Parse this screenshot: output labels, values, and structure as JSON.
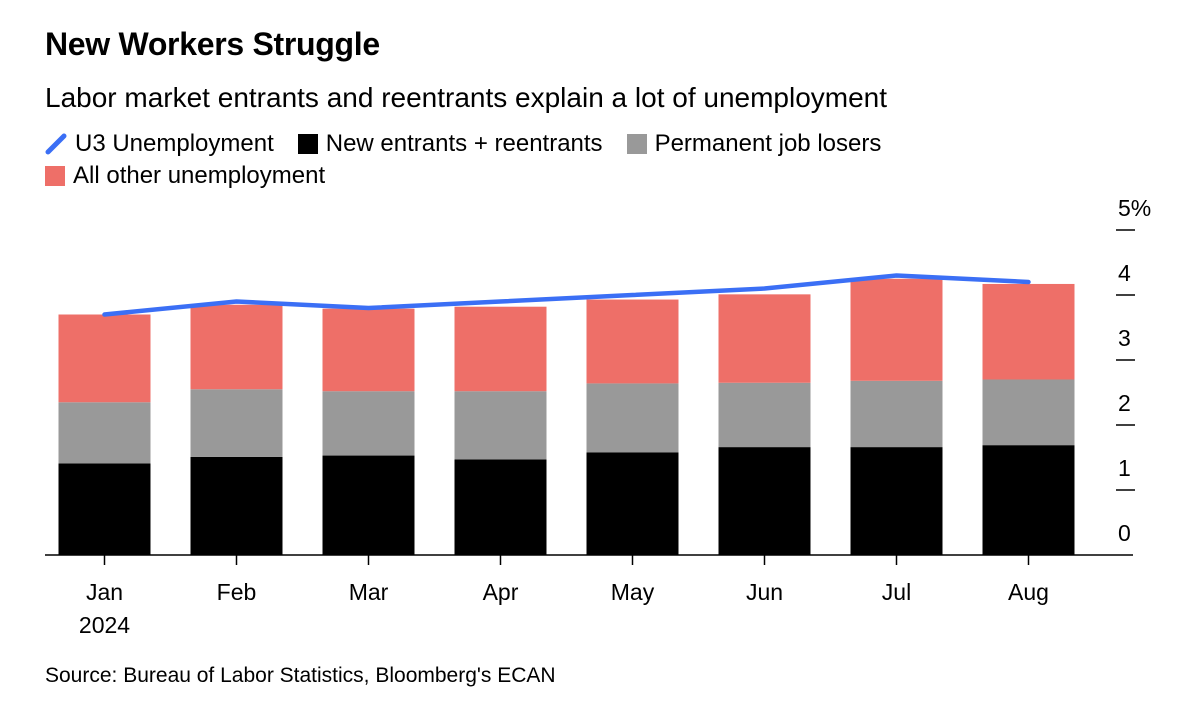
{
  "title": "New Workers Struggle",
  "subtitle": "Labor market entrants and reentrants explain a lot of unemployment",
  "legend": {
    "line": "U3 Unemployment",
    "entrants": "New entrants + reentrants",
    "losers": "Permanent job losers",
    "other": "All other unemployment"
  },
  "source": "Source: Bureau of Labor Statistics, Bloomberg's ECAN",
  "colors": {
    "line": "#3b6ff5",
    "entrants": "#000000",
    "losers": "#999999",
    "other": "#ee6f68"
  },
  "chart_data": {
    "type": "bar",
    "stacked": true,
    "categories": [
      "Jan",
      "Feb",
      "Mar",
      "Apr",
      "May",
      "Jun",
      "Jul",
      "Aug"
    ],
    "category_sublabels": [
      "2024",
      "",
      "",
      "",
      "",
      "",
      "",
      ""
    ],
    "series": [
      {
        "name": "New entrants + reentrants",
        "values": [
          1.41,
          1.51,
          1.53,
          1.47,
          1.58,
          1.66,
          1.66,
          1.69
        ]
      },
      {
        "name": "Permanent job losers",
        "values": [
          0.94,
          1.04,
          0.99,
          1.05,
          1.06,
          0.99,
          1.02,
          1.01
        ]
      },
      {
        "name": "All other unemployment",
        "values": [
          1.35,
          1.3,
          1.27,
          1.3,
          1.29,
          1.36,
          1.57,
          1.47
        ]
      }
    ],
    "line": {
      "name": "U3 Unemployment",
      "values": [
        3.7,
        3.9,
        3.8,
        3.9,
        4.0,
        4.1,
        4.3,
        4.2
      ]
    },
    "ylim": [
      0,
      5
    ],
    "yticks": [
      "0",
      "1",
      "2",
      "3",
      "4",
      "5%"
    ],
    "y_axis_side": "right",
    "grid": false,
    "legend_position": "top-left"
  }
}
